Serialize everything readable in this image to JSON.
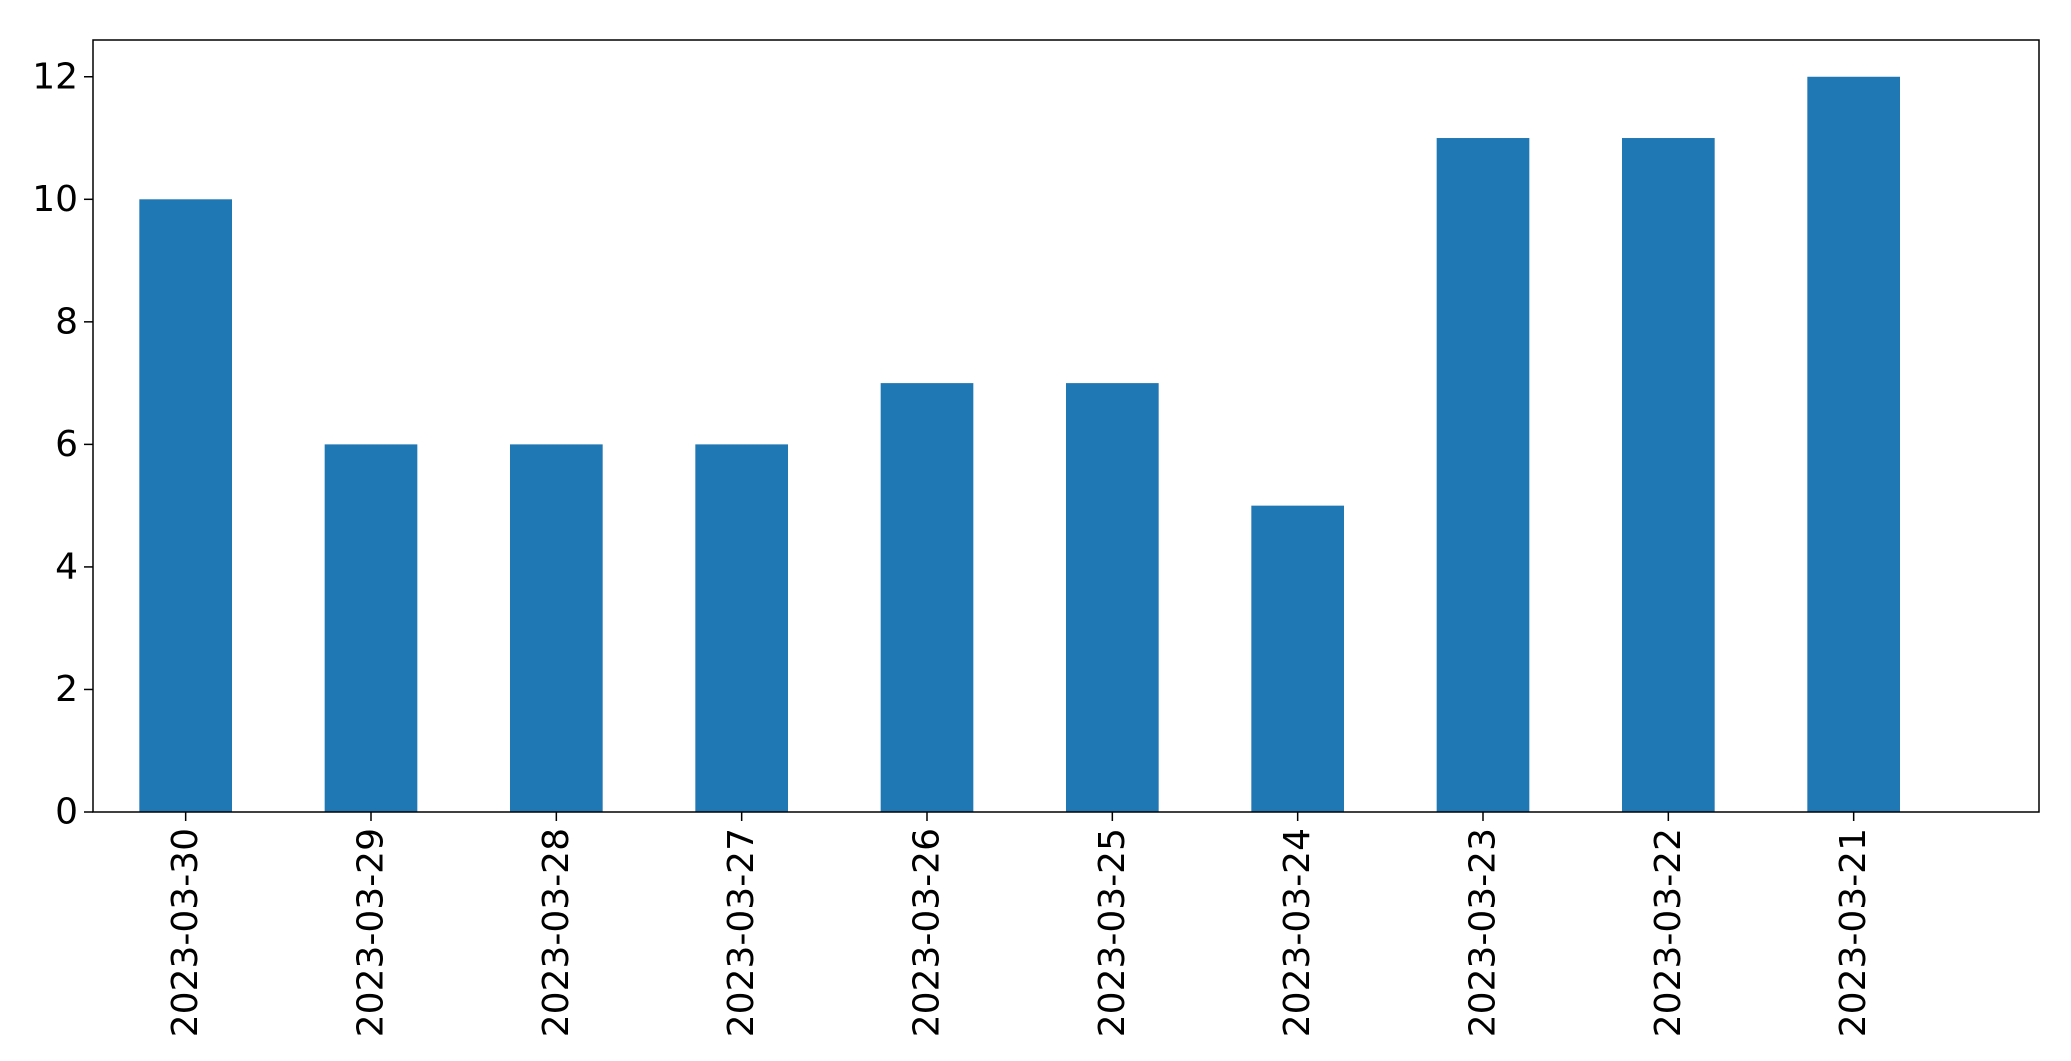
{
  "chart_data": {
    "type": "bar",
    "title": "",
    "xlabel": "",
    "ylabel": "",
    "categories": [
      "2023-03-30",
      "2023-03-29",
      "2023-03-28",
      "2023-03-27",
      "2023-03-26",
      "2023-03-25",
      "2023-03-24",
      "2023-03-23",
      "2023-03-22",
      "2023-03-21"
    ],
    "values": [
      10,
      6,
      6,
      6,
      7,
      7,
      5,
      11,
      11,
      12
    ],
    "ylim": [
      0,
      12.6
    ],
    "yticks": [
      0,
      2,
      4,
      6,
      8,
      10,
      12
    ],
    "grid": false,
    "legend": "none",
    "bar_color": "#1f77b4"
  }
}
